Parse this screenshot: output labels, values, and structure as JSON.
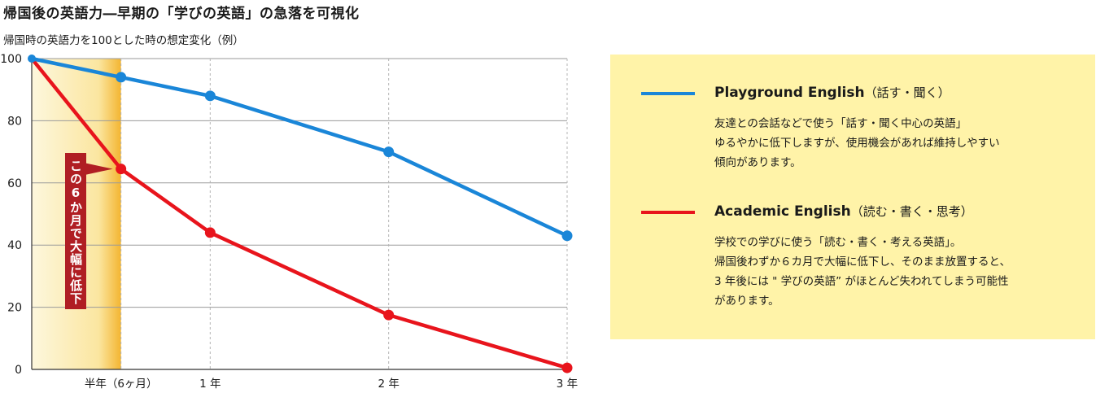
{
  "title": "帰国後の英語力―早期の「学びの英語」の急落を可視化",
  "subtitle": "帰国時の英語力を100とした時の想定変化（例）",
  "chart_data": {
    "type": "line",
    "ylim": [
      0,
      100
    ],
    "yticks": [
      0,
      20,
      40,
      60,
      80,
      100
    ],
    "xlim": [
      0,
      3
    ],
    "x": [
      0,
      0.5,
      1,
      2,
      3
    ],
    "xticks": [
      {
        "value": 0.5,
        "label": "半年（6ヶ月）"
      },
      {
        "value": 1,
        "label": "1 年"
      },
      {
        "value": 2,
        "label": "2 年"
      },
      {
        "value": 3,
        "label": "3 年"
      }
    ],
    "grid": true,
    "series": [
      {
        "name": "Playground English",
        "color": "#1a86d8",
        "values": [
          100,
          94,
          88,
          70,
          43
        ]
      },
      {
        "name": "Academic English",
        "color": "#e8141c",
        "values": [
          100,
          64.5,
          44,
          17.5,
          0.5
        ]
      }
    ],
    "highlight": {
      "x_start": 0,
      "x_end": 0.5,
      "color_start": "#fdf7dd",
      "color_end": "#f3b531"
    },
    "annotation": {
      "text": "この6か月で大幅に低下",
      "color": "#b01e23",
      "text_color": "#ffffff"
    }
  },
  "legend": {
    "items": [
      {
        "name": "Playground English",
        "sub": "（話す・聞く）",
        "color": "#1a86d8",
        "desc": [
          "友達との会話などで使う「話す・聞く中心の英語」",
          "ゆるやかに低下しますが、使用機会があれば維持しやすい",
          "傾向があります。"
        ]
      },
      {
        "name": "Academic English",
        "sub": "（読む・書く・思考）",
        "color": "#e8141c",
        "desc": [
          "学校での学びに使う「読む・書く・考える英語」。",
          "帰国後わずか６カ月で大幅に低下し、そのまま放置すると、",
          "3 年後には \" 学びの英語” がほとんど失われてしまう可能性",
          "があります。"
        ]
      }
    ]
  }
}
